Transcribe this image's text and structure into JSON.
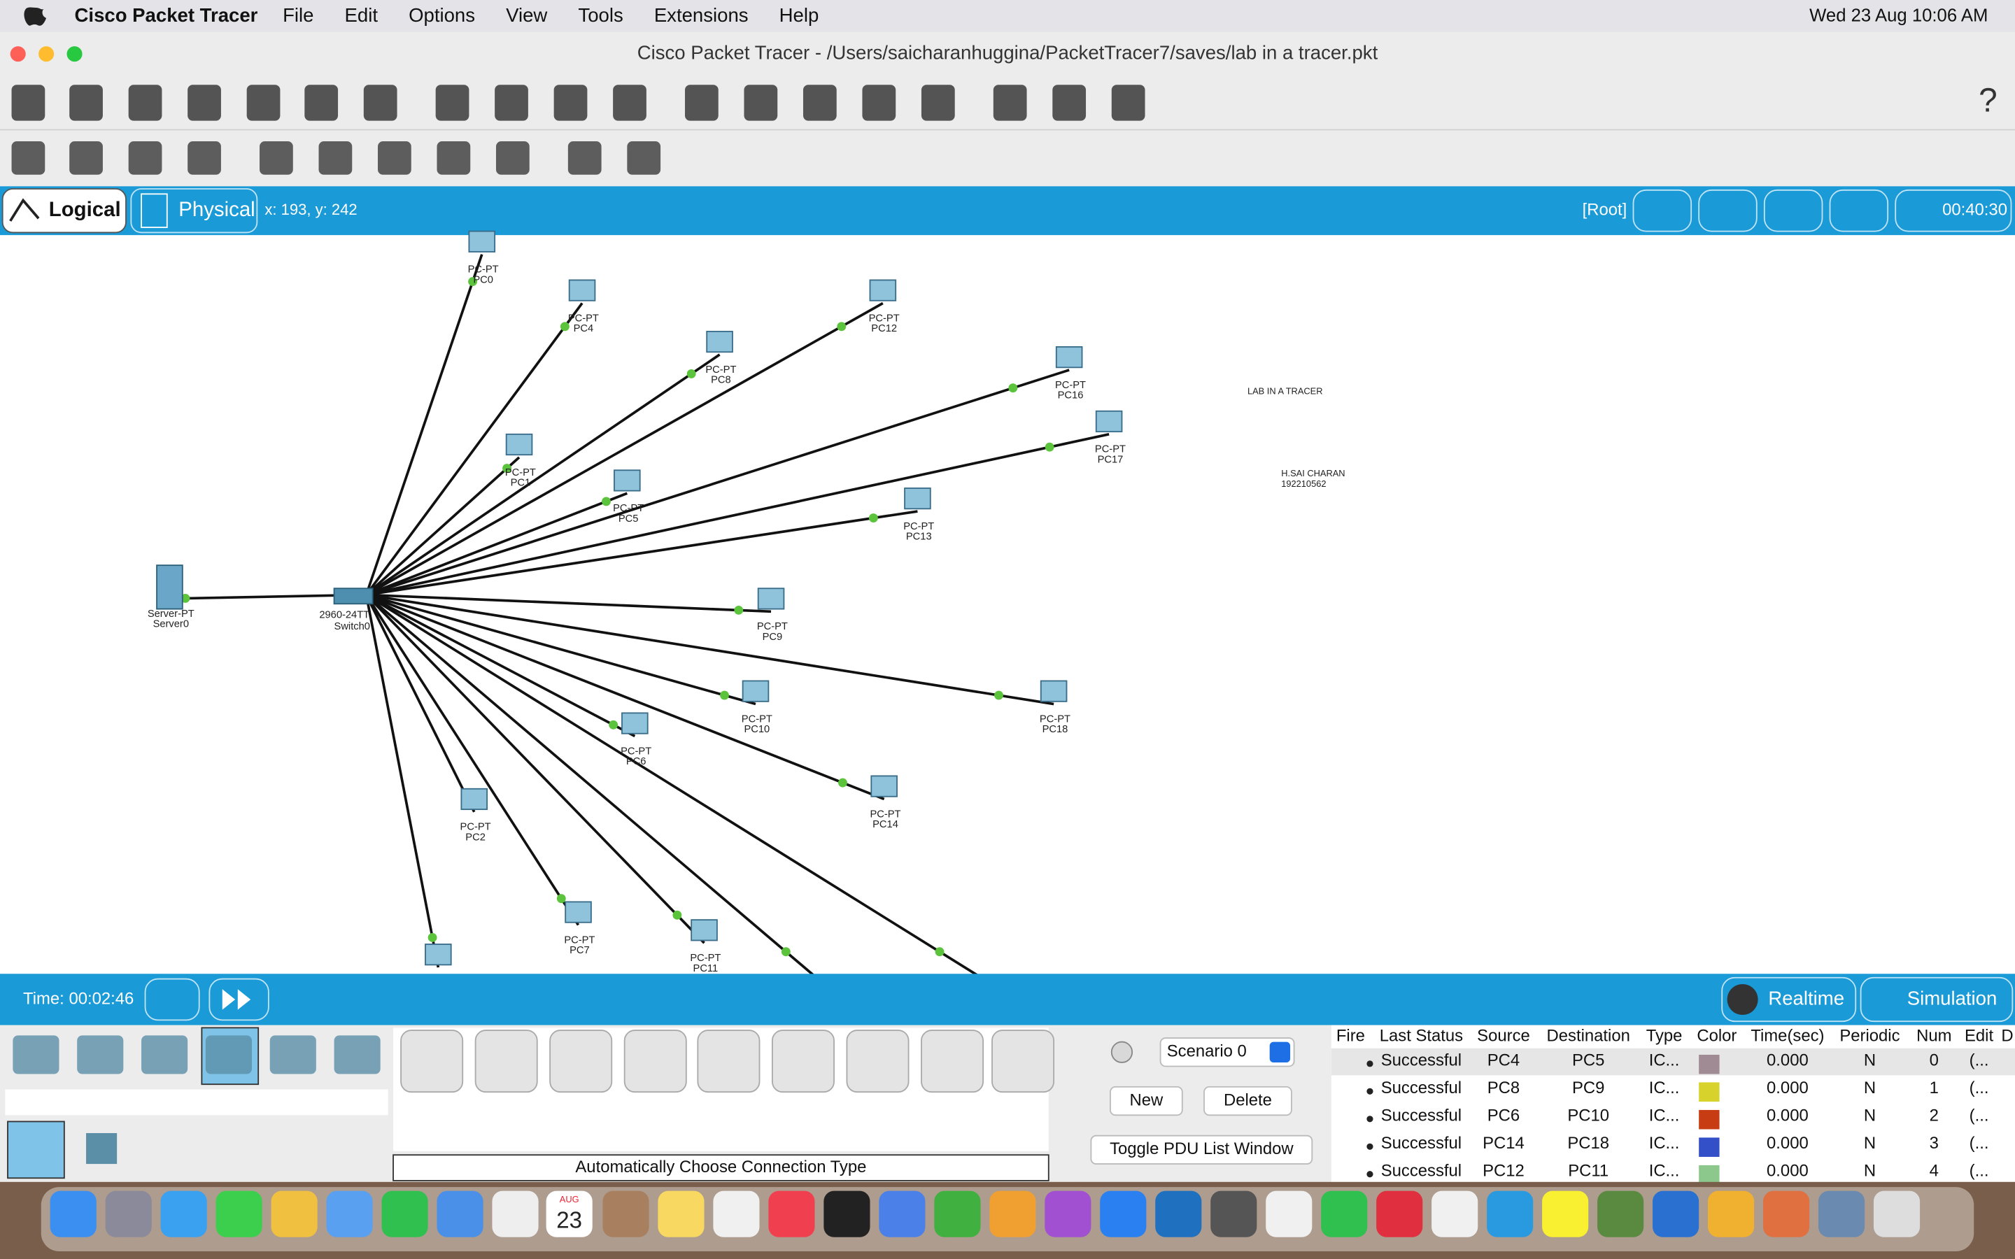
{
  "menu_bar": {
    "app": "Cisco Packet Tracer",
    "items": [
      "File",
      "Edit",
      "Options",
      "View",
      "Tools",
      "Extensions",
      "Help"
    ],
    "clock": "Wed 23 Aug  10:06 AM"
  },
  "window": {
    "title": "Cisco Packet Tracer - /Users/saicharanhuggina/PacketTracer7/saves/lab in a tracer.pkt"
  },
  "mode_bar": {
    "logical": "Logical",
    "physical": "Physical",
    "coords": "x: 193, y: 242",
    "root": "[Root]",
    "timer": "00:40:30"
  },
  "workspace": {
    "nodes": [
      {
        "type": "PC-PT",
        "name": "PC0"
      },
      {
        "type": "PC-PT",
        "name": "PC4"
      },
      {
        "type": "PC-PT",
        "name": "PC12"
      },
      {
        "type": "PC-PT",
        "name": "PC8"
      },
      {
        "type": "PC-PT",
        "name": "PC16"
      },
      {
        "type": "PC-PT",
        "name": "PC17"
      },
      {
        "type": "PC-PT",
        "name": "PC1"
      },
      {
        "type": "PC-PT",
        "name": "PC5"
      },
      {
        "type": "PC-PT",
        "name": "PC13"
      },
      {
        "type": "Server-PT",
        "name": "Server0"
      },
      {
        "type": "PC-PT",
        "name": "PC9"
      },
      {
        "type": "PC-PT",
        "name": "PC10"
      },
      {
        "type": "PC-PT",
        "name": "PC18"
      },
      {
        "type": "PC-PT",
        "name": "PC6"
      },
      {
        "type": "PC-PT",
        "name": "PC14"
      },
      {
        "type": "PC-PT",
        "name": "PC2"
      },
      {
        "type": "PC-PT",
        "name": "PC7"
      },
      {
        "type": "PC-PT",
        "name": "PC11"
      }
    ],
    "switch": {
      "type": "2960-24TT",
      "name": "Switch0"
    },
    "notes": [
      "LAB IN A TRACER",
      "H.SAI CHARAN",
      "192210562"
    ]
  },
  "sim_bar": {
    "time": "Time: 00:02:46",
    "realtime": "Realtime",
    "simulation": "Simulation"
  },
  "bottom": {
    "connection_hint": "Automatically Choose Connection Type",
    "scenario": "Scenario 0",
    "new": "New",
    "delete": "Delete",
    "toggle": "Toggle PDU List Window"
  },
  "pdu_table": {
    "headers": [
      "Fire",
      "Last Status",
      "Source",
      "Destination",
      "Type",
      "Color",
      "Time(sec)",
      "Periodic",
      "Num",
      "Edit",
      "D"
    ],
    "rows": [
      [
        "Successful",
        "PC4",
        "PC5",
        "IC...",
        "0.000",
        "N",
        "0",
        "(..."
      ],
      [
        "Successful",
        "PC8",
        "PC9",
        "IC...",
        "0.000",
        "N",
        "1",
        "(..."
      ],
      [
        "Successful",
        "PC6",
        "PC10",
        "IC...",
        "0.000",
        "N",
        "2",
        "(..."
      ],
      [
        "Successful",
        "PC14",
        "PC18",
        "IC...",
        "0.000",
        "N",
        "3",
        "(..."
      ],
      [
        "Successful",
        "PC12",
        "PC11",
        "IC...",
        "0.000",
        "N",
        "4",
        "(..."
      ]
    ],
    "colors": [
      "#a08a94",
      "#d8d22c",
      "#c83c14",
      "#3450c8",
      "#8cc88c"
    ]
  },
  "dock": {
    "month": "AUG",
    "day": "23"
  }
}
